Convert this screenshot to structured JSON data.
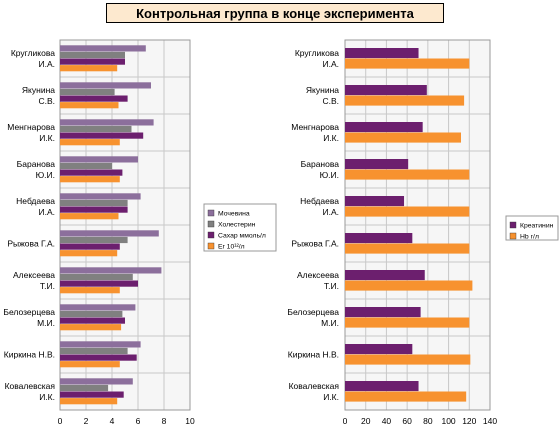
{
  "title": "Контрольная группа в конце эксперимента",
  "colors": {
    "mochevina": "#8c6f9c",
    "holesterin": "#808080",
    "sahar": "#6c1f6e",
    "er": "#f7922f",
    "kreatinin": "#6c1f6e",
    "hb": "#f7922f",
    "grid": "#c8c8c8",
    "panel_bg": "#f6f6f6"
  },
  "chart_data": [
    {
      "type": "bar",
      "orientation": "horizontal",
      "categories": [
        [
          "Кругликова",
          "И.А."
        ],
        [
          "Якунина",
          "С.В."
        ],
        [
          "Менгнарова",
          "И.К."
        ],
        [
          "Баранова",
          "Ю.И."
        ],
        [
          "Небдаева",
          "И.А."
        ],
        [
          "Рыжова Г.А."
        ],
        [
          "Алексеева",
          "Т.И."
        ],
        [
          "Белозерцева",
          "М.И."
        ],
        [
          "Киркина Н.В."
        ],
        [
          "Ковалевская",
          "И.К."
        ]
      ],
      "series": [
        {
          "name": "Мочевина",
          "color_key": "mochevina",
          "values": [
            6.6,
            7.0,
            7.2,
            6.0,
            6.2,
            7.6,
            7.8,
            5.8,
            6.2,
            5.6
          ]
        },
        {
          "name": "Холестерин",
          "color_key": "holesterin",
          "values": [
            5.0,
            4.2,
            5.5,
            4.0,
            5.2,
            5.2,
            5.6,
            4.8,
            5.2,
            3.7
          ]
        },
        {
          "name": "Сахар ммоль/л",
          "color_key": "sahar",
          "values": [
            5.0,
            5.2,
            6.4,
            4.8,
            5.2,
            4.6,
            6.0,
            5.0,
            5.9,
            4.9
          ]
        },
        {
          "name": "Er 10¹²/л",
          "color_key": "er",
          "values": [
            4.4,
            4.5,
            4.6,
            4.6,
            4.5,
            4.4,
            4.6,
            4.7,
            4.6,
            4.4
          ]
        }
      ],
      "xlim": [
        0,
        10
      ],
      "xticks": [
        0,
        2,
        4,
        6,
        8,
        10
      ],
      "grid": true,
      "legend": "right"
    },
    {
      "type": "bar",
      "orientation": "horizontal",
      "categories": [
        [
          "Кругликова",
          "И.А."
        ],
        [
          "Якунина",
          "С.В."
        ],
        [
          "Менгнарова",
          "И.К."
        ],
        [
          "Баранова",
          "Ю.И."
        ],
        [
          "Небдаева",
          "И.А."
        ],
        [
          "Рыжова Г.А."
        ],
        [
          "Алексеева",
          "Т.И."
        ],
        [
          "Белозерцева",
          "М.И."
        ],
        [
          "Киркина Н.В."
        ],
        [
          "Ковалевская",
          "И.К."
        ]
      ],
      "series": [
        {
          "name": "Креатинин",
          "color_key": "kreatinin",
          "values": [
            71,
            79,
            75,
            61,
            57,
            65,
            77,
            73,
            65,
            71
          ]
        },
        {
          "name": "Hb г/л",
          "color_key": "hb",
          "values": [
            120,
            115,
            112,
            120,
            120,
            120,
            123,
            120,
            121,
            117
          ]
        }
      ],
      "xlim": [
        0,
        140
      ],
      "xticks": [
        0,
        20,
        40,
        60,
        80,
        100,
        120,
        140
      ],
      "grid": true,
      "legend": "right"
    }
  ]
}
